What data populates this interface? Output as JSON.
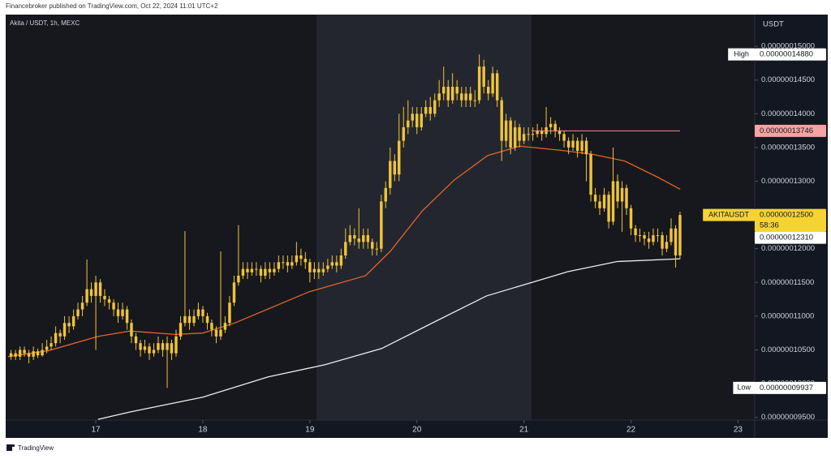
{
  "header": "Financebroker published on TradingView.com, Oct 22, 2024 11:01 UTC+2",
  "footer": "TradingView",
  "chart_data": {
    "type": "candlestick",
    "title": "Akita / USDT, 1h, MEXC",
    "y_axis_label": "USDT",
    "color": "#f0c43a",
    "x": [
      16.208,
      16.25,
      16.292,
      16.333,
      16.375,
      16.417,
      16.458,
      16.5,
      16.542,
      16.583,
      16.625,
      16.667,
      16.708,
      16.75,
      16.792,
      16.833,
      16.875,
      16.917,
      16.958,
      17,
      17.042,
      17.083,
      17.125,
      17.167,
      17.208,
      17.25,
      17.292,
      17.333,
      17.375,
      17.417,
      17.458,
      17.5,
      17.542,
      17.583,
      17.625,
      17.667,
      17.708,
      17.75,
      17.792,
      17.833,
      17.875,
      17.917,
      17.958,
      18,
      18.042,
      18.083,
      18.125,
      18.167,
      18.208,
      18.25,
      18.292,
      18.333,
      18.375,
      18.417,
      18.458,
      18.5,
      18.542,
      18.583,
      18.625,
      18.667,
      18.708,
      18.75,
      18.792,
      18.833,
      18.875,
      18.917,
      18.958,
      19,
      19.042,
      19.083,
      19.125,
      19.167,
      19.208,
      19.25,
      19.292,
      19.333,
      19.375,
      19.417,
      19.458,
      19.5,
      19.542,
      19.583,
      19.625,
      19.667,
      19.708,
      19.75,
      19.792,
      19.833,
      19.875,
      19.917,
      19.958,
      20,
      20.042,
      20.083,
      20.125,
      20.167,
      20.208,
      20.25,
      20.292,
      20.333,
      20.375,
      20.417,
      20.458,
      20.5,
      20.542,
      20.583,
      20.625,
      20.667,
      20.708,
      20.75,
      20.792,
      20.833,
      20.875,
      20.917,
      20.958,
      21,
      21.042,
      21.083,
      21.125,
      21.167,
      21.208,
      21.25,
      21.292,
      21.333,
      21.375,
      21.417,
      21.458,
      21.5,
      21.542,
      21.583,
      21.625,
      21.667,
      21.708,
      21.75,
      21.792,
      21.833,
      21.875,
      21.917,
      21.958,
      22,
      22.042,
      22.083,
      22.125,
      22.167,
      22.208,
      22.25,
      22.292,
      22.333,
      22.375,
      22.417,
      22.458
    ],
    "open": [
      1.04e-07,
      1.045e-07,
      1.04e-07,
      1.05e-07,
      1.045e-07,
      1.04e-07,
      1.048e-07,
      1.042e-07,
      1.05e-07,
      1.055e-07,
      1.06e-07,
      1.075e-07,
      1.07e-07,
      1.09e-07,
      1.085e-07,
      1.1e-07,
      1.11e-07,
      1.12e-07,
      1.14e-07,
      1.13e-07,
      1.15e-07,
      1.13e-07,
      1.125e-07,
      1.12e-07,
      1.11e-07,
      1.1e-07,
      1.11e-07,
      1.09e-07,
      1.07e-07,
      1.06e-07,
      1.05e-07,
      1.055e-07,
      1.045e-07,
      1.05e-07,
      1.06e-07,
      1.05e-07,
      1.06e-07,
      1.045e-07,
      1.07e-07,
      1.09e-07,
      1.1e-07,
      1.09e-07,
      1.1e-07,
      1.11e-07,
      1.1e-07,
      1.09e-07,
      1.08e-07,
      1.07e-07,
      1.08e-07,
      1.09e-07,
      1.12e-07,
      1.15e-07,
      1.16e-07,
      1.17e-07,
      1.165e-07,
      1.17e-07,
      1.17e-07,
      1.16e-07,
      1.17e-07,
      1.165e-07,
      1.17e-07,
      1.18e-07,
      1.18e-07,
      1.175e-07,
      1.18e-07,
      1.19e-07,
      1.185e-07,
      1.18e-07,
      1.165e-07,
      1.17e-07,
      1.165e-07,
      1.17e-07,
      1.175e-07,
      1.18e-07,
      1.175e-07,
      1.19e-07,
      1.21e-07,
      1.22e-07,
      1.215e-07,
      1.21e-07,
      1.22e-07,
      1.21e-07,
      1.2e-07,
      1.2e-07,
      1.27e-07,
      1.29e-07,
      1.33e-07,
      1.31e-07,
      1.36e-07,
      1.38e-07,
      1.39e-07,
      1.4e-07,
      1.38e-07,
      1.4e-07,
      1.41e-07,
      1.4e-07,
      1.42e-07,
      1.43e-07,
      1.44e-07,
      1.42e-07,
      1.44e-07,
      1.43e-07,
      1.42e-07,
      1.43e-07,
      1.42e-07,
      1.42e-07,
      1.47e-07,
      1.44e-07,
      1.43e-07,
      1.46e-07,
      1.42e-07,
      1.36e-07,
      1.39e-07,
      1.35e-07,
      1.38e-07,
      1.36e-07,
      1.37e-07,
      1.37e-07,
      1.37e-07,
      1.375e-07,
      1.37e-07,
      1.38e-07,
      1.385e-07,
      1.375e-07,
      1.37e-07,
      1.36e-07,
      1.35e-07,
      1.36e-07,
      1.345e-07,
      1.36e-07,
      1.34e-07,
      1.28e-07,
      1.27e-07,
      1.26e-07,
      1.28e-07,
      1.24e-07,
      1.3e-07,
      1.27e-07,
      1.29e-07,
      1.26e-07,
      1.23e-07,
      1.22e-07,
      1.22e-07,
      1.215e-07,
      1.21e-07,
      1.22e-07,
      1.22e-07,
      1.2e-07,
      1.21e-07,
      1.23e-07,
      1.19e-07
    ],
    "high": [
      1.05e-07,
      1.05e-07,
      1.055e-07,
      1.055e-07,
      1.05e-07,
      1.055e-07,
      1.052e-07,
      1.06e-07,
      1.065e-07,
      1.07e-07,
      1.085e-07,
      1.08e-07,
      1.1e-07,
      1.1e-07,
      1.11e-07,
      1.12e-07,
      1.13e-07,
      1.184e-07,
      1.15e-07,
      1.16e-07,
      1.155e-07,
      1.14e-07,
      1.13e-07,
      1.125e-07,
      1.12e-07,
      1.12e-07,
      1.115e-07,
      1.095e-07,
      1.075e-07,
      1.065e-07,
      1.065e-07,
      1.06e-07,
      1.06e-07,
      1.07e-07,
      1.065e-07,
      1.07e-07,
      1.065e-07,
      1.08e-07,
      1.1e-07,
      1.226e-07,
      1.11e-07,
      1.11e-07,
      1.12e-07,
      1.115e-07,
      1.105e-07,
      1.095e-07,
      1.085e-07,
      1.196e-07,
      1.1e-07,
      1.13e-07,
      1.16e-07,
      1.235e-07,
      1.18e-07,
      1.18e-07,
      1.18e-07,
      1.18e-07,
      1.175e-07,
      1.18e-07,
      1.18e-07,
      1.18e-07,
      1.19e-07,
      1.19e-07,
      1.19e-07,
      1.19e-07,
      1.21e-07,
      1.2e-07,
      1.195e-07,
      1.185e-07,
      1.18e-07,
      1.18e-07,
      1.18e-07,
      1.185e-07,
      1.19e-07,
      1.19e-07,
      1.2e-07,
      1.23e-07,
      1.235e-07,
      1.23e-07,
      1.26e-07,
      1.23e-07,
      1.23e-07,
      1.215e-07,
      1.21e-07,
      1.28e-07,
      1.3e-07,
      1.35e-07,
      1.34e-07,
      1.4e-07,
      1.41e-07,
      1.42e-07,
      1.41e-07,
      1.41e-07,
      1.41e-07,
      1.42e-07,
      1.425e-07,
      1.43e-07,
      1.45e-07,
      1.47e-07,
      1.45e-07,
      1.46e-07,
      1.45e-07,
      1.44e-07,
      1.44e-07,
      1.44e-07,
      1.435e-07,
      1.488e-07,
      1.48e-07,
      1.45e-07,
      1.47e-07,
      1.465e-07,
      1.425e-07,
      1.4e-07,
      1.395e-07,
      1.39e-07,
      1.385e-07,
      1.38e-07,
      1.38e-07,
      1.38e-07,
      1.385e-07,
      1.38e-07,
      1.41e-07,
      1.395e-07,
      1.39e-07,
      1.38e-07,
      1.375e-07,
      1.365e-07,
      1.37e-07,
      1.365e-07,
      1.37e-07,
      1.365e-07,
      1.345e-07,
      1.29e-07,
      1.28e-07,
      1.29e-07,
      1.285e-07,
      1.35e-07,
      1.31e-07,
      1.3e-07,
      1.295e-07,
      1.265e-07,
      1.235e-07,
      1.23e-07,
      1.225e-07,
      1.225e-07,
      1.23e-07,
      1.23e-07,
      1.225e-07,
      1.22e-07,
      1.245e-07,
      1.235e-07,
      1.255e-07
    ],
    "low": [
      1.035e-07,
      1.035e-07,
      1.035e-07,
      1.04e-07,
      1.03e-07,
      1.035e-07,
      1.038e-07,
      1.04e-07,
      1.045e-07,
      1.05e-07,
      1.055e-07,
      1.06e-07,
      1.065e-07,
      1.075e-07,
      1.08e-07,
      1.095e-07,
      1.1e-07,
      1.115e-07,
      1.12e-07,
      1.05e-07,
      1.12e-07,
      1.115e-07,
      1.11e-07,
      1.1e-07,
      1.09e-07,
      1.095e-07,
      1.08e-07,
      1.06e-07,
      1.05e-07,
      1.04e-07,
      1.045e-07,
      1.035e-07,
      1.04e-07,
      1.045e-07,
      1.04e-07,
      9.937e-08,
      1.035e-07,
      1.04e-07,
      1.065e-07,
      1.085e-07,
      1.08e-07,
      1.085e-07,
      1.095e-07,
      1.09e-07,
      1.08e-07,
      1.07e-07,
      1.06e-07,
      1.065e-07,
      1.075e-07,
      1.085e-07,
      1.115e-07,
      1.145e-07,
      1.155e-07,
      1.155e-07,
      1.16e-07,
      1.16e-07,
      1.15e-07,
      1.155e-07,
      1.155e-07,
      1.16e-07,
      1.165e-07,
      1.17e-07,
      1.165e-07,
      1.17e-07,
      1.175e-07,
      1.175e-07,
      1.17e-07,
      1.15e-07,
      1.155e-07,
      1.155e-07,
      1.16e-07,
      1.165e-07,
      1.17e-07,
      1.165e-07,
      1.17e-07,
      1.185e-07,
      1.205e-07,
      1.205e-07,
      1.2e-07,
      1.2e-07,
      1.2e-07,
      1.19e-07,
      1.19e-07,
      1.195e-07,
      1.26e-07,
      1.28e-07,
      1.3e-07,
      1.3e-07,
      1.35e-07,
      1.37e-07,
      1.38e-07,
      1.37e-07,
      1.375e-07,
      1.395e-07,
      1.39e-07,
      1.395e-07,
      1.41e-07,
      1.42e-07,
      1.41e-07,
      1.415e-07,
      1.42e-07,
      1.41e-07,
      1.41e-07,
      1.41e-07,
      1.41e-07,
      1.415e-07,
      1.43e-07,
      1.42e-07,
      1.425e-07,
      1.41e-07,
      1.33e-07,
      1.35e-07,
      1.34e-07,
      1.345e-07,
      1.35e-07,
      1.355e-07,
      1.36e-07,
      1.36e-07,
      1.365e-07,
      1.36e-07,
      1.365e-07,
      1.37e-07,
      1.365e-07,
      1.36e-07,
      1.35e-07,
      1.34e-07,
      1.345e-07,
      1.335e-07,
      1.34e-07,
      1.3e-07,
      1.27e-07,
      1.26e-07,
      1.25e-07,
      1.255e-07,
      1.23e-07,
      1.235e-07,
      1.26e-07,
      1.225e-07,
      1.25e-07,
      1.22e-07,
      1.21e-07,
      1.21e-07,
      1.205e-07,
      1.2e-07,
      1.205e-07,
      1.21e-07,
      1.19e-07,
      1.195e-07,
      1.205e-07,
      1.172e-07,
      1.185e-07
    ],
    "close": [
      1.045e-07,
      1.04e-07,
      1.05e-07,
      1.045e-07,
      1.04e-07,
      1.048e-07,
      1.042e-07,
      1.05e-07,
      1.055e-07,
      1.06e-07,
      1.075e-07,
      1.07e-07,
      1.09e-07,
      1.085e-07,
      1.1e-07,
      1.11e-07,
      1.12e-07,
      1.14e-07,
      1.13e-07,
      1.15e-07,
      1.13e-07,
      1.125e-07,
      1.12e-07,
      1.11e-07,
      1.1e-07,
      1.11e-07,
      1.09e-07,
      1.07e-07,
      1.06e-07,
      1.05e-07,
      1.055e-07,
      1.045e-07,
      1.05e-07,
      1.06e-07,
      1.05e-07,
      1.06e-07,
      1.045e-07,
      1.07e-07,
      1.09e-07,
      1.1e-07,
      1.09e-07,
      1.1e-07,
      1.11e-07,
      1.1e-07,
      1.09e-07,
      1.08e-07,
      1.07e-07,
      1.08e-07,
      1.09e-07,
      1.12e-07,
      1.15e-07,
      1.16e-07,
      1.17e-07,
      1.165e-07,
      1.17e-07,
      1.17e-07,
      1.16e-07,
      1.17e-07,
      1.165e-07,
      1.17e-07,
      1.18e-07,
      1.18e-07,
      1.175e-07,
      1.18e-07,
      1.19e-07,
      1.185e-07,
      1.18e-07,
      1.165e-07,
      1.17e-07,
      1.165e-07,
      1.17e-07,
      1.175e-07,
      1.18e-07,
      1.175e-07,
      1.19e-07,
      1.21e-07,
      1.22e-07,
      1.215e-07,
      1.21e-07,
      1.22e-07,
      1.21e-07,
      1.2e-07,
      1.2e-07,
      1.27e-07,
      1.29e-07,
      1.33e-07,
      1.31e-07,
      1.36e-07,
      1.38e-07,
      1.39e-07,
      1.4e-07,
      1.38e-07,
      1.4e-07,
      1.41e-07,
      1.4e-07,
      1.42e-07,
      1.43e-07,
      1.44e-07,
      1.42e-07,
      1.44e-07,
      1.43e-07,
      1.42e-07,
      1.43e-07,
      1.42e-07,
      1.42e-07,
      1.47e-07,
      1.44e-07,
      1.43e-07,
      1.46e-07,
      1.42e-07,
      1.36e-07,
      1.39e-07,
      1.35e-07,
      1.38e-07,
      1.36e-07,
      1.37e-07,
      1.37e-07,
      1.37e-07,
      1.375e-07,
      1.37e-07,
      1.38e-07,
      1.385e-07,
      1.375e-07,
      1.37e-07,
      1.36e-07,
      1.35e-07,
      1.36e-07,
      1.345e-07,
      1.36e-07,
      1.34e-07,
      1.28e-07,
      1.27e-07,
      1.26e-07,
      1.28e-07,
      1.24e-07,
      1.3e-07,
      1.27e-07,
      1.29e-07,
      1.26e-07,
      1.23e-07,
      1.22e-07,
      1.22e-07,
      1.215e-07,
      1.21e-07,
      1.22e-07,
      1.22e-07,
      1.2e-07,
      1.21e-07,
      1.23e-07,
      1.19e-07,
      1.25e-07
    ],
    "lines": [
      {
        "color": "#e0652b",
        "x": [
          16.18,
          16.56,
          17.02,
          17.32,
          17.74,
          18,
          18.3,
          18.99,
          19.52,
          19.75,
          20.05,
          20.35,
          20.66,
          20.96,
          21.34,
          21.64,
          21.94,
          22.25,
          22.46
        ],
        "values": [
          1.04e-07,
          1.049e-07,
          1.07e-07,
          1.078e-07,
          1.073e-07,
          1.075e-07,
          1.09e-07,
          1.136e-07,
          1.16e-07,
          1.196e-07,
          1.256e-07,
          1.302e-07,
          1.338e-07,
          1.352e-07,
          1.346e-07,
          1.34e-07,
          1.33e-07,
          1.306e-07,
          1.288e-07
        ]
      },
      {
        "color": "#ececec",
        "x": [
          17.02,
          17.32,
          18,
          18.61,
          19.14,
          19.67,
          20.12,
          20.65,
          21.03,
          21.41,
          21.87,
          22.46
        ],
        "values": [
          9.47e-08,
          9.58e-08,
          9.8e-08,
          1.01e-07,
          1.028e-07,
          1.052e-07,
          1.088e-07,
          1.13e-07,
          1.148e-07,
          1.166e-07,
          1.181e-07,
          1.185e-07
        ]
      }
    ],
    "xlim": [
      16.158,
      23.156
    ],
    "xticks": [
      17,
      18,
      19,
      20,
      21,
      22,
      23
    ],
    "ylim": [
      9.46e-08,
      1.547e-07
    ],
    "yticks": [
      {
        "value": 9.5e-08,
        "label": "0.00000009500"
      },
      {
        "value": 1e-07,
        "label": "0.00000010000"
      },
      {
        "value": 1.05e-07,
        "label": "0.00000010500"
      },
      {
        "value": 1.1e-07,
        "label": "0.00000011000"
      },
      {
        "value": 1.15e-07,
        "label": "0.00000011500"
      },
      {
        "value": 1.2e-07,
        "label": "0.00000012000"
      },
      {
        "value": 1.25e-07,
        "label": "0.00000012500"
      },
      {
        "value": 1.3e-07,
        "label": "0.00000013000"
      },
      {
        "value": 1.35e-07,
        "label": "0.00000013500"
      },
      {
        "value": 1.4e-07,
        "label": "0.00000014000"
      },
      {
        "value": 1.45e-07,
        "label": "0.00000014500"
      },
      {
        "value": 1.5e-07,
        "label": "0.00000015000"
      }
    ],
    "price_tags": [
      {
        "label": "High",
        "value": 1.488e-07,
        "value_label": "0.00000014880",
        "color": "#ffffff"
      },
      {
        "value": 1.3746e-07,
        "value_label": "0.00000013746",
        "color": "#f4a3a3",
        "line_color": "#f28b8b"
      },
      {
        "label": "AKITAUSDT",
        "value": 1.25e-07,
        "value_label": "0.00000012500",
        "countdown": "58:36",
        "color": "#f5d432"
      },
      {
        "value": 1.231e-07,
        "value_label": "0.00000012310",
        "color": "#ffffff"
      },
      {
        "label": "Low",
        "value": 9.937e-08,
        "value_label": "0.00000009937",
        "color": "#ffffff"
      }
    ]
  }
}
